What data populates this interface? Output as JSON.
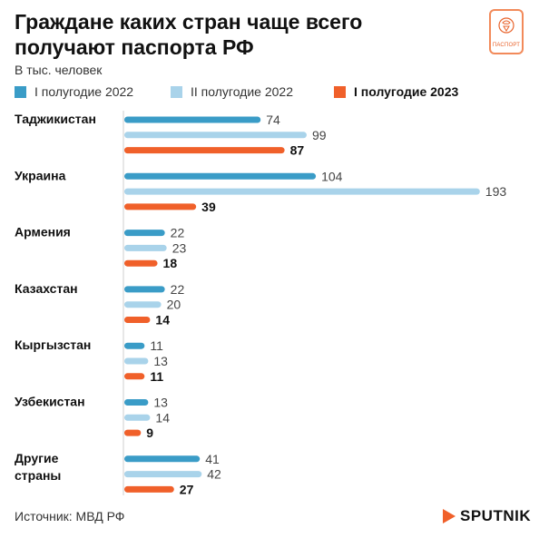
{
  "header": {
    "title": "Граждане каких стран чаще всего получают паспорта РФ",
    "subtitle": "В тыс. человек"
  },
  "logo": {
    "label": "ПАСПОРТ",
    "icon": "passport-emblem-icon"
  },
  "source": "Источник: МВД РФ",
  "brand": {
    "name": "SPUTNIK",
    "icon": "sputnik-arrow-icon"
  },
  "chart_data": {
    "type": "bar",
    "orientation": "horizontal",
    "unit": "В тыс. человек",
    "categories": [
      "Таджикистан",
      "Украина",
      "Армения",
      "Казахстан",
      "Кыргызстан",
      "Узбекистан",
      "Другие страны"
    ],
    "series": [
      {
        "name": "I полугодие 2022",
        "color": "#3a9cc7",
        "bold": false,
        "values": [
          74,
          104,
          22,
          22,
          11,
          13,
          41
        ]
      },
      {
        "name": "II полугодие 2022",
        "color": "#a9d3ea",
        "bold": false,
        "values": [
          99,
          193,
          23,
          20,
          13,
          14,
          42
        ]
      },
      {
        "name": "I полугодие 2023",
        "color": "#f0602a",
        "bold": true,
        "values": [
          87,
          39,
          18,
          14,
          11,
          9,
          27
        ]
      }
    ],
    "xlim": [
      0,
      193
    ],
    "grid": false,
    "legend_position": "top"
  }
}
